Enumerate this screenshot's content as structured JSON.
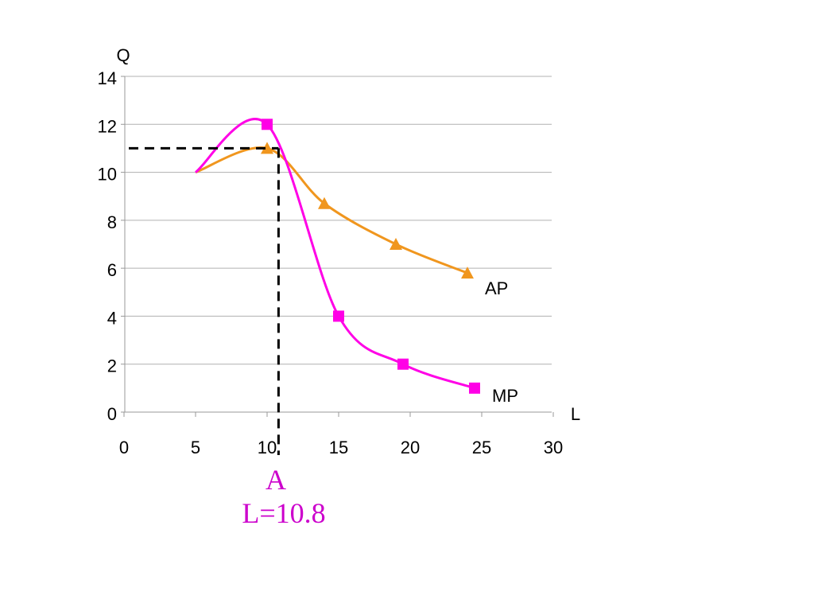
{
  "chart_data": {
    "type": "line",
    "xlabel": "L",
    "ylabel": "Q",
    "x_ticks": [
      "0",
      "5",
      "10",
      "15",
      "20",
      "25",
      "30"
    ],
    "y_ticks": [
      "0",
      "2",
      "4",
      "6",
      "8",
      "10",
      "12",
      "14"
    ],
    "xlim": [
      0,
      30
    ],
    "ylim": [
      0,
      14
    ],
    "grid": "horizontal",
    "series": [
      {
        "name": "AP",
        "color": "#f0961e",
        "marker": "triangle",
        "smooth_start": [
          5,
          10
        ],
        "x": [
          10,
          14,
          19,
          24
        ],
        "y": [
          11,
          8.7,
          7,
          5.8
        ]
      },
      {
        "name": "MP",
        "color": "#ff00e6",
        "marker": "square",
        "smooth_start": [
          5,
          10
        ],
        "x": [
          10,
          15,
          19.5,
          24.5
        ],
        "y": [
          12,
          4,
          2,
          1
        ]
      }
    ],
    "reference_point": {
      "x": 10.8,
      "y": 11
    },
    "annotations": {
      "point_label": "A",
      "point_value": "L=10.8",
      "color": "#cc00cc"
    }
  }
}
